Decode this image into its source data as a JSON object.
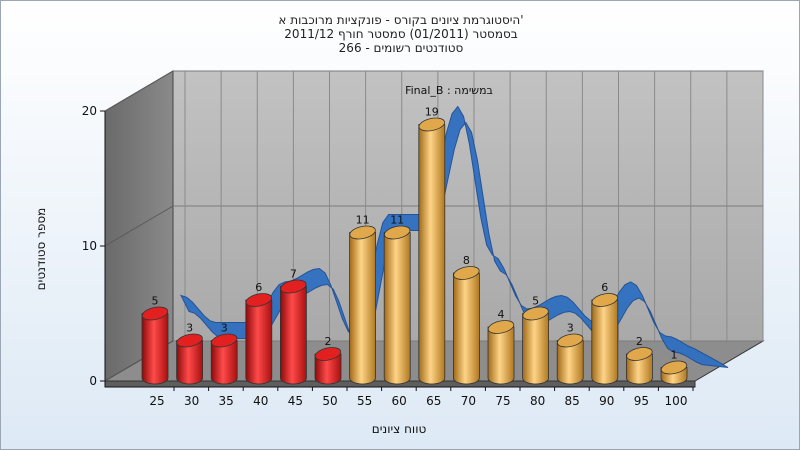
{
  "title_lines": [
    "היסטוגרמת ציונים בקורס - פונקציות מרוכבות א'",
    "בסמסטר  (01/2011)  סמסטר חורף 2011/12",
    "סטודנטים רשומים - 266"
  ],
  "chart_data": {
    "type": "bar",
    "categories": [
      "25",
      "30",
      "35",
      "40",
      "45",
      "50",
      "55",
      "60",
      "65",
      "70",
      "75",
      "80",
      "85",
      "90",
      "95",
      "100"
    ],
    "bars": [
      {
        "label": "25",
        "value": 5,
        "color": "#e32020"
      },
      {
        "label": "30",
        "value": 3,
        "color": "#e32020"
      },
      {
        "label": "35",
        "value": 3,
        "color": "#e32020"
      },
      {
        "label": "40",
        "value": 6,
        "color": "#e32020"
      },
      {
        "label": "45",
        "value": 7,
        "color": "#e32020"
      },
      {
        "label": "50",
        "value": 2,
        "color": "#e32020"
      },
      {
        "label": "55",
        "value": 11,
        "color": "#e0a84a"
      },
      {
        "label": "60",
        "value": 11,
        "color": "#e0a84a"
      },
      {
        "label": "65",
        "value": 19,
        "color": "#e0a84a"
      },
      {
        "label": "70",
        "value": 8,
        "color": "#e0a84a"
      },
      {
        "label": "75",
        "value": 4,
        "color": "#e0a84a"
      },
      {
        "label": "80",
        "value": 5,
        "color": "#e0a84a"
      },
      {
        "label": "85",
        "value": 3,
        "color": "#e0a84a"
      },
      {
        "label": "90",
        "value": 6,
        "color": "#e0a84a"
      },
      {
        "label": "95",
        "value": 2,
        "color": "#e0a84a"
      },
      {
        "label": "100",
        "value": 1,
        "color": "#e0a84a"
      }
    ],
    "trend_color": "#2f6fc0",
    "yticks": [
      0,
      10,
      20
    ],
    "ylim": [
      0,
      20
    ],
    "xlabel": "טווח ציונים",
    "ylabel": "מספר סטודנטים",
    "annotation": "Final_B : במשימה",
    "grid": true
  }
}
